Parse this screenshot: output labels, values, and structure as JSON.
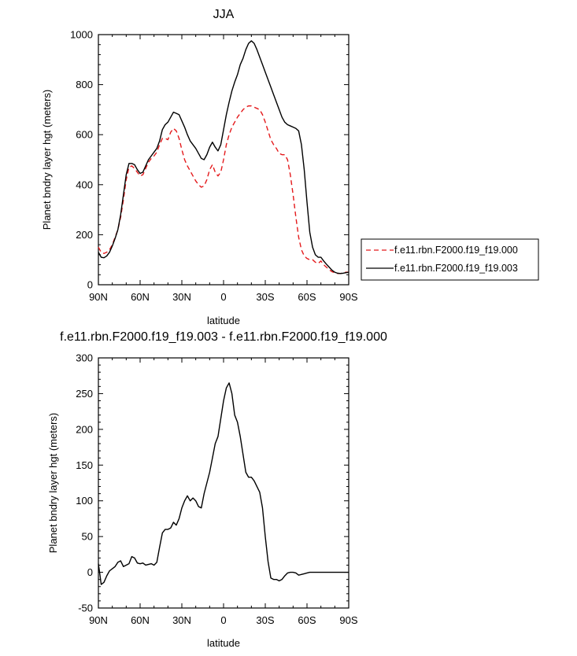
{
  "chart_data": [
    {
      "type": "line",
      "title": "JJA",
      "xlabel": "latitude",
      "ylabel": "Planet bndry layer hgt (meters)",
      "xlim": [
        90,
        -90
      ],
      "ylim": [
        0,
        1000
      ],
      "xticks": [
        {
          "value": 90,
          "label": "90N"
        },
        {
          "value": 60,
          "label": "60N"
        },
        {
          "value": 30,
          "label": "30N"
        },
        {
          "value": 0,
          "label": "0"
        },
        {
          "value": -30,
          "label": "30S"
        },
        {
          "value": -60,
          "label": "60S"
        },
        {
          "value": -90,
          "label": "90S"
        }
      ],
      "yticks": [
        0,
        200,
        400,
        600,
        800,
        1000
      ],
      "legend": {
        "placement": "right"
      },
      "series": [
        {
          "name": "f.e11.rbn.F2000.f19_f19.000",
          "color": "#e41a1c",
          "dash": "dashed",
          "x": [
            90,
            88,
            86,
            84,
            82,
            80,
            78,
            76,
            74,
            72,
            70,
            68,
            66,
            64,
            62,
            60,
            58,
            56,
            54,
            52,
            50,
            48,
            46,
            44,
            42,
            40,
            38,
            36,
            34,
            32,
            30,
            28,
            26,
            24,
            22,
            20,
            18,
            16,
            14,
            12,
            10,
            8,
            6,
            4,
            2,
            0,
            -2,
            -4,
            -6,
            -8,
            -10,
            -12,
            -14,
            -16,
            -18,
            -20,
            -22,
            -24,
            -26,
            -28,
            -30,
            -32,
            -34,
            -36,
            -38,
            -40,
            -42,
            -44,
            -46,
            -48,
            -50,
            -52,
            -54,
            -56,
            -58,
            -60,
            -62,
            -64,
            -66,
            -68,
            -70,
            -72,
            -74,
            -76,
            -78,
            -80,
            -82,
            -84,
            -86,
            -88,
            -90
          ],
          "y": [
            150,
            130,
            125,
            130,
            140,
            160,
            190,
            220,
            270,
            340,
            420,
            470,
            475,
            465,
            450,
            435,
            440,
            465,
            490,
            505,
            515,
            530,
            560,
            585,
            585,
            580,
            610,
            625,
            615,
            585,
            540,
            500,
            475,
            455,
            435,
            415,
            400,
            390,
            395,
            420,
            460,
            480,
            450,
            435,
            450,
            500,
            560,
            600,
            630,
            650,
            670,
            685,
            700,
            710,
            715,
            715,
            710,
            705,
            700,
            680,
            650,
            615,
            580,
            560,
            545,
            525,
            520,
            520,
            500,
            440,
            360,
            270,
            190,
            140,
            115,
            105,
            100,
            100,
            90,
            85,
            95,
            80,
            70,
            60,
            52,
            48,
            45,
            45,
            47,
            50,
            50
          ]
        },
        {
          "name": "f.e11.rbn.F2000.f19_f19.003",
          "color": "#000000",
          "dash": "solid",
          "x": [
            90,
            88,
            86,
            84,
            82,
            80,
            78,
            76,
            74,
            72,
            70,
            68,
            66,
            64,
            62,
            60,
            58,
            56,
            54,
            52,
            50,
            48,
            46,
            44,
            42,
            40,
            38,
            36,
            34,
            32,
            30,
            28,
            26,
            24,
            22,
            20,
            18,
            16,
            14,
            12,
            10,
            8,
            6,
            4,
            2,
            0,
            -2,
            -4,
            -6,
            -8,
            -10,
            -12,
            -14,
            -16,
            -18,
            -20,
            -22,
            -24,
            -26,
            -28,
            -30,
            -32,
            -34,
            -36,
            -38,
            -40,
            -42,
            -44,
            -46,
            -48,
            -50,
            -52,
            -54,
            -56,
            -58,
            -60,
            -62,
            -64,
            -66,
            -68,
            -70,
            -72,
            -74,
            -76,
            -78,
            -80,
            -82,
            -84,
            -86,
            -88,
            -90
          ],
          "y": [
            130,
            110,
            108,
            115,
            130,
            155,
            185,
            220,
            280,
            360,
            440,
            485,
            485,
            480,
            460,
            445,
            450,
            475,
            500,
            515,
            530,
            545,
            575,
            620,
            640,
            650,
            670,
            690,
            685,
            680,
            655,
            630,
            600,
            575,
            560,
            545,
            525,
            505,
            500,
            520,
            550,
            570,
            550,
            535,
            560,
            620,
            680,
            730,
            775,
            810,
            840,
            880,
            905,
            940,
            965,
            975,
            965,
            940,
            910,
            880,
            850,
            820,
            790,
            760,
            730,
            700,
            670,
            650,
            640,
            635,
            630,
            625,
            615,
            560,
            460,
            330,
            210,
            150,
            120,
            110,
            110,
            95,
            82,
            70,
            58,
            50,
            46,
            45,
            46,
            48,
            50
          ]
        }
      ]
    },
    {
      "type": "line",
      "title": "f.e11.rbn.F2000.f19_f19.003 - f.e11.rbn.F2000.f19_f19.000",
      "xlabel": "latitude",
      "ylabel": "Planet bndry layer hgt (meters)",
      "xlim": [
        90,
        -90
      ],
      "ylim": [
        -50,
        300
      ],
      "xticks": [
        {
          "value": 90,
          "label": "90N"
        },
        {
          "value": 60,
          "label": "60N"
        },
        {
          "value": 30,
          "label": "30N"
        },
        {
          "value": 0,
          "label": "0"
        },
        {
          "value": -30,
          "label": "30S"
        },
        {
          "value": -60,
          "label": "60S"
        },
        {
          "value": -90,
          "label": "90S"
        }
      ],
      "yticks": [
        -50,
        0,
        50,
        100,
        150,
        200,
        250,
        300
      ],
      "series": [
        {
          "color": "#000000",
          "dash": "solid",
          "x": [
            90,
            89,
            88,
            86,
            84,
            82,
            80,
            78,
            76,
            74,
            72,
            70,
            68,
            66,
            64,
            62,
            60,
            58,
            56,
            54,
            52,
            50,
            48,
            46,
            44,
            42,
            40,
            38,
            36,
            34,
            32,
            30,
            28,
            26,
            24,
            22,
            20,
            18,
            16,
            14,
            12,
            10,
            8,
            6,
            4,
            2,
            0,
            -2,
            -4,
            -6,
            -8,
            -10,
            -12,
            -14,
            -16,
            -18,
            -20,
            -22,
            -24,
            -26,
            -28,
            -30,
            -32,
            -34,
            -36,
            -38,
            -40,
            -42,
            -44,
            -46,
            -48,
            -50,
            -52,
            -54,
            -56,
            -58,
            -60,
            -62,
            -64,
            -66,
            -68,
            -70,
            -72,
            -74,
            -76,
            -78,
            -80,
            -82,
            -84,
            -86,
            -88,
            -90
          ],
          "y": [
            12,
            -2,
            -17,
            -14,
            -5,
            2,
            5,
            8,
            14,
            16,
            8,
            10,
            12,
            22,
            20,
            13,
            12,
            13,
            10,
            11,
            12,
            10,
            14,
            35,
            55,
            60,
            60,
            62,
            70,
            66,
            75,
            90,
            100,
            107,
            100,
            104,
            100,
            92,
            90,
            110,
            125,
            140,
            160,
            180,
            190,
            215,
            240,
            258,
            265,
            250,
            220,
            210,
            190,
            165,
            140,
            133,
            133,
            128,
            120,
            112,
            90,
            50,
            15,
            -8,
            -10,
            -10,
            -12,
            -10,
            -5,
            -1,
            0,
            0,
            -1,
            -4,
            -3,
            -2,
            -1,
            0,
            0,
            0,
            0,
            0,
            0,
            0,
            0,
            0,
            0,
            0,
            0,
            0,
            0,
            0
          ]
        }
      ]
    }
  ]
}
